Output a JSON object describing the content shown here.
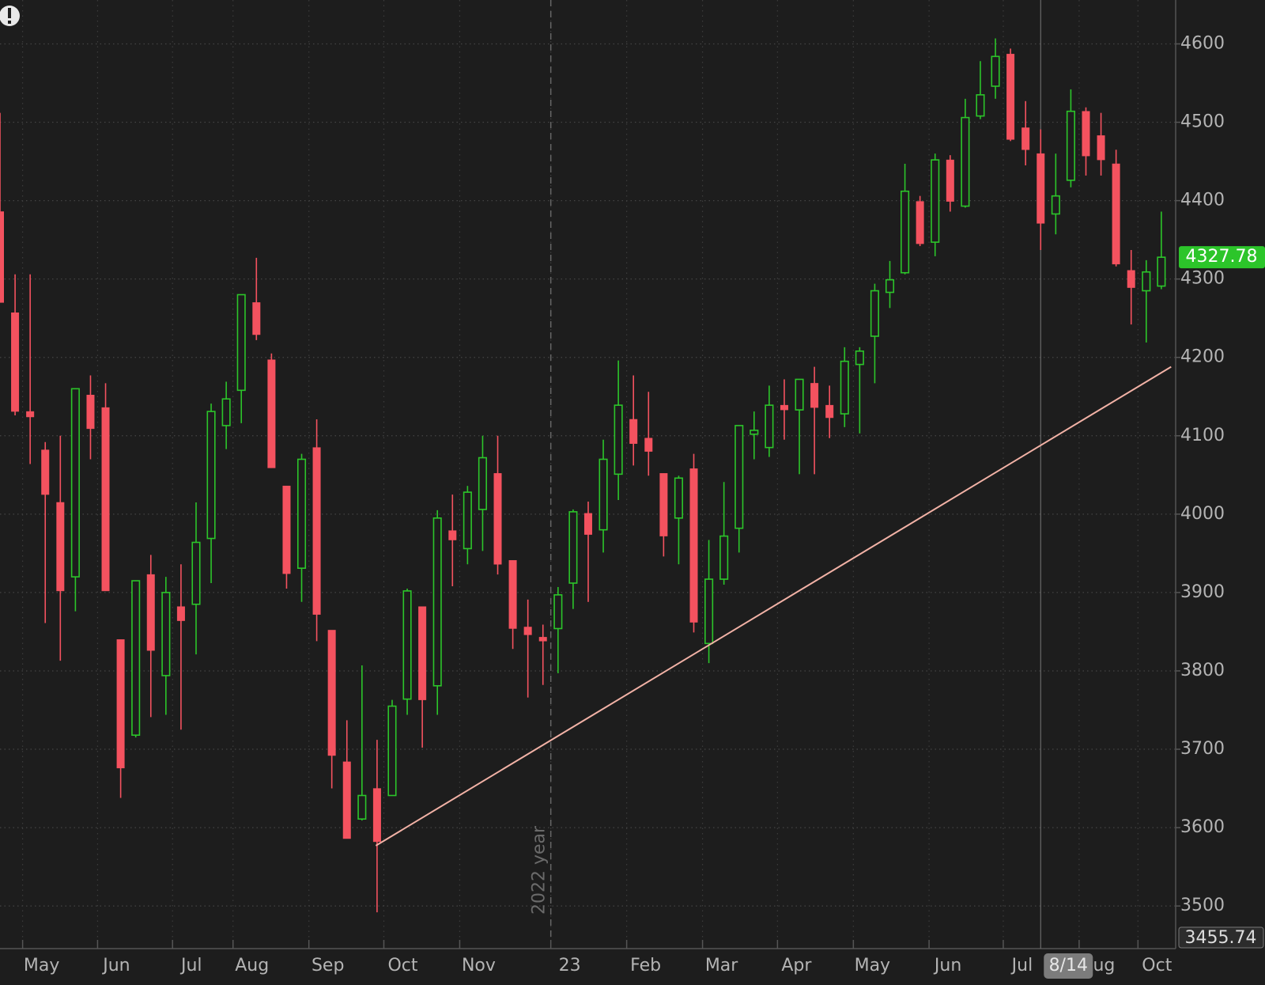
{
  "chart_data": {
    "type": "candlestick",
    "categories": [
      null,
      null,
      null,
      null,
      null,
      null,
      null,
      null,
      null,
      null,
      null,
      null,
      null,
      null,
      null,
      null,
      null,
      null,
      null,
      null,
      null,
      null,
      null,
      null,
      null,
      null,
      null,
      null,
      null,
      null,
      null,
      null,
      null,
      null,
      null,
      null,
      null,
      null,
      null,
      null,
      null,
      null,
      null,
      null,
      null,
      null,
      null,
      null,
      null,
      null,
      null,
      null,
      null,
      null,
      null,
      null,
      null,
      null,
      null,
      null,
      null,
      null,
      null,
      null,
      null,
      null,
      null,
      null,
      null,
      null,
      null,
      null,
      null,
      null,
      null,
      null,
      null,
      null
    ],
    "open": [
      4386,
      4257,
      4131,
      4082,
      4015,
      3920,
      4152,
      4136,
      3840,
      3718,
      3923,
      3794,
      3882,
      3885,
      3969,
      4113,
      4158,
      4270,
      4197,
      4036,
      3931,
      4085,
      3852,
      3684,
      3611,
      3650,
      3641,
      3764,
      3882,
      3781,
      3979,
      3956,
      4006,
      4052,
      3941,
      3856,
      3843,
      3854,
      3912,
      4001,
      3980,
      4051,
      4121,
      4097,
      4052,
      3995,
      4058,
      3835,
      3917,
      3982,
      4102,
      4085,
      4139,
      4133,
      4167,
      4139,
      4128,
      4191,
      4227,
      4283,
      4308,
      4399,
      4347,
      4452,
      4393,
      4508,
      4546,
      4587,
      4493,
      4460,
      4383,
      4426,
      4514,
      4483,
      4447,
      4311,
      4285,
      4291
    ],
    "high": [
      4512,
      4306,
      4306,
      4092,
      4100,
      4160,
      4177,
      4167,
      3840,
      3915,
      3948,
      3920,
      3936,
      4015,
      4141,
      4169,
      4280,
      4327,
      4205,
      4036,
      4077,
      4121,
      3852,
      3737,
      3807,
      3712,
      3763,
      3905,
      3882,
      4005,
      4025,
      4036,
      4100,
      4100,
      3941,
      3891,
      3859,
      3907,
      4006,
      4016,
      4095,
      4196,
      4177,
      4156,
      4052,
      4049,
      4077,
      3967,
      4041,
      4113,
      4131,
      4164,
      4172,
      4172,
      4188,
      4164,
      4213,
      4213,
      4294,
      4323,
      4447,
      4406,
      4460,
      4458,
      4530,
      4578,
      4607,
      4594,
      4527,
      4491,
      4460,
      4542,
      4519,
      4512,
      4465,
      4337,
      4324,
      4386
    ],
    "low": [
      4270,
      4126,
      4064,
      3861,
      3813,
      3876,
      4070,
      3902,
      3638,
      3715,
      3741,
      3744,
      3725,
      3821,
      3912,
      4083,
      4116,
      4222,
      4059,
      3905,
      3888,
      3838,
      3650,
      3586,
      3609,
      3492,
      3641,
      3744,
      3702,
      3744,
      3908,
      3936,
      3953,
      3923,
      3828,
      3766,
      3782,
      3797,
      3879,
      3888,
      3951,
      4018,
      4062,
      4049,
      3946,
      3936,
      3849,
      3810,
      3910,
      3951,
      4070,
      4073,
      4095,
      4051,
      4051,
      4097,
      4111,
      4103,
      4167,
      4263,
      4306,
      4342,
      4329,
      4386,
      4391,
      4504,
      4530,
      4476,
      4445,
      4337,
      4357,
      4417,
      4432,
      4432,
      4316,
      4242,
      4219,
      4287
    ],
    "close": [
      4270,
      4131,
      4124,
      4025,
      3902,
      4160,
      4109,
      3902,
      3676,
      3915,
      3826,
      3900,
      3864,
      3964,
      4131,
      4147,
      4280,
      4229,
      4059,
      3924,
      4070,
      3872,
      3692,
      3586,
      3641,
      3582,
      3755,
      3902,
      3763,
      3995,
      3967,
      4028,
      4072,
      3936,
      3854,
      3846,
      3838,
      3897,
      4003,
      3974,
      4070,
      4139,
      4090,
      4080,
      3972,
      4046,
      3862,
      3917,
      3972,
      4113,
      4107,
      4139,
      4133,
      4172,
      4136,
      4123,
      4195,
      4208,
      4285,
      4299,
      4412,
      4345,
      4452,
      4399,
      4506,
      4535,
      4584,
      4478,
      4465,
      4371,
      4406,
      4514,
      4457,
      4452,
      4319,
      4289,
      4309,
      4327.78
    ],
    "up_color": "#2cc52a",
    "down_color": "#f4525f",
    "xlim": [
      0,
      77.95
    ],
    "ylim": [
      3455.74,
      4656
    ],
    "yticks": [
      3500,
      3600,
      3700,
      3800,
      3900,
      4000,
      4100,
      4200,
      4300,
      4400,
      4500,
      4600
    ],
    "xticks": [
      {
        "value": 1.5,
        "label": "May"
      },
      {
        "value": 6.47,
        "label": "Jun"
      },
      {
        "value": 11.44,
        "label": "Jul"
      },
      {
        "value": 15.45,
        "label": "Aug"
      },
      {
        "value": 20.48,
        "label": "Sep"
      },
      {
        "value": 25.45,
        "label": "Oct"
      },
      {
        "value": 30.48,
        "label": "Nov"
      },
      {
        "value": 36.52,
        "label": "23"
      },
      {
        "value": 41.55,
        "label": "Feb"
      },
      {
        "value": 46.58,
        "label": "Mar"
      },
      {
        "value": 51.55,
        "label": "Apr"
      },
      {
        "value": 56.58,
        "label": "May"
      },
      {
        "value": 61.6,
        "label": "Jun"
      },
      {
        "value": 66.52,
        "label": "Jul"
      },
      {
        "value": 71.55,
        "label": "Aug"
      },
      {
        "value": 75.45,
        "label": "Oct"
      }
    ],
    "grid": true,
    "year_divider": {
      "x": 36.52,
      "label": "2022 year"
    },
    "crosshair": {
      "x": 69,
      "label": "8/14"
    },
    "trendline": {
      "x": [
        24.92,
        77.65
      ],
      "values": [
        3577,
        4188
      ],
      "color": "#f2b2a6"
    }
  }
}
